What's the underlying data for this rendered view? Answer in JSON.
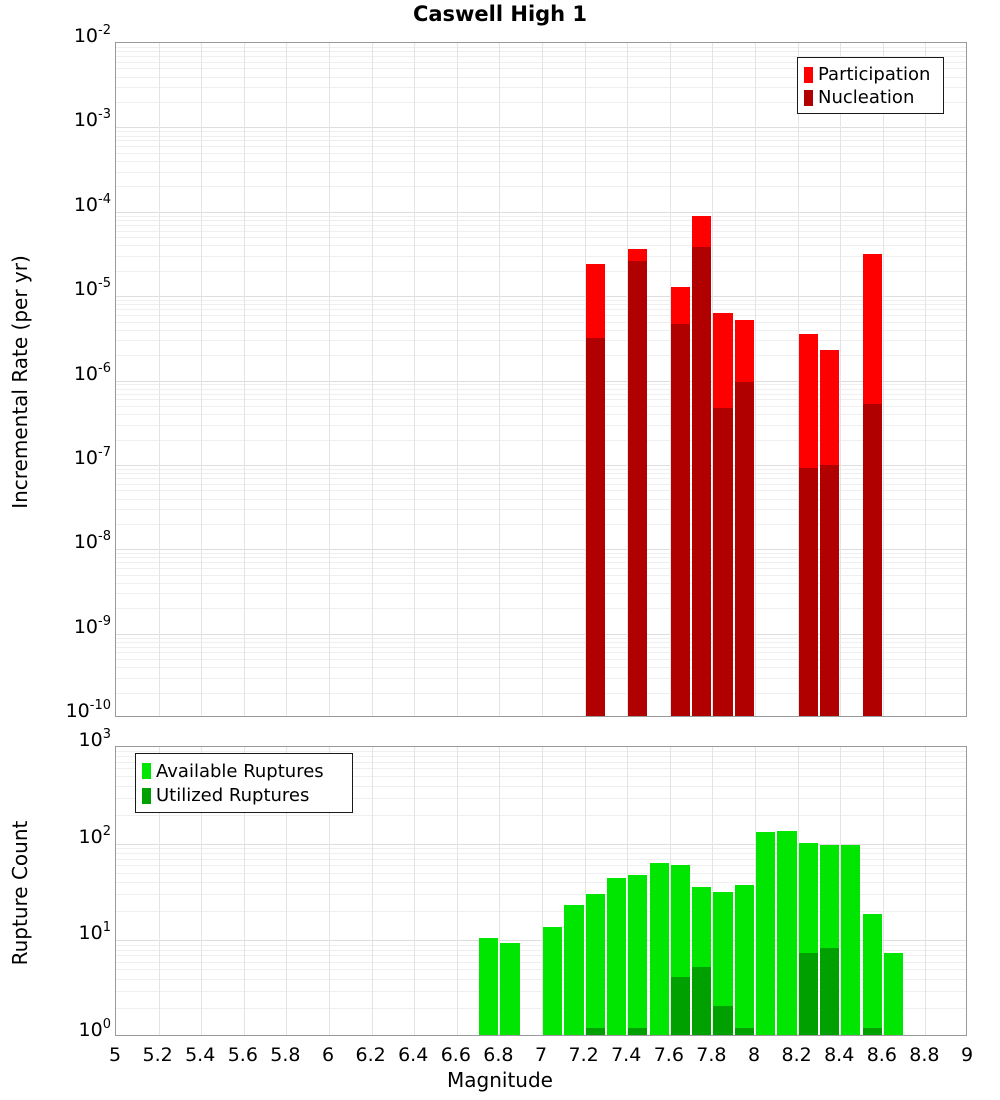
{
  "title": "Caswell High 1",
  "chart_data": [
    {
      "type": "bar",
      "panel": "incremental-rate",
      "title": "Caswell High 1",
      "ylabel": "Incremental Rate (per yr)",
      "xlabel": "",
      "yscale": "log",
      "ylim": [
        1e-10,
        0.01
      ],
      "xlim": [
        5,
        9
      ],
      "bin_width": 0.1,
      "grid": true,
      "legend_position": "top-right",
      "ytick_exponents": [
        -2,
        -3,
        -4,
        -5,
        -6,
        -7,
        -8,
        -9,
        -10
      ],
      "xticks": [
        "5",
        "5.2",
        "5.4",
        "5.6",
        "5.8",
        "6",
        "6.2",
        "6.4",
        "6.6",
        "6.8",
        "7",
        "7.2",
        "7.4",
        "7.6",
        "7.8",
        "8",
        "8.2",
        "8.4",
        "8.6",
        "8.8",
        "9"
      ],
      "show_xtick_labels": false,
      "series": [
        {
          "name": "Participation",
          "color": "#ff0000",
          "bins": [
            7.2,
            7.4,
            7.6,
            7.7,
            7.8,
            7.9,
            8.2,
            8.3,
            8.5
          ],
          "values": [
            2.3e-05,
            3.4e-05,
            1.2e-05,
            8.5e-05,
            6e-06,
            5e-06,
            3.4e-06,
            2.2e-06,
            3e-05
          ]
        },
        {
          "name": "Nucleation",
          "color": "#b00000",
          "bins": [
            7.2,
            7.4,
            7.6,
            7.7,
            7.8,
            7.9,
            8.2,
            8.3,
            8.5
          ],
          "values": [
            3e-06,
            2.5e-05,
            4.4e-06,
            3.6e-05,
            4.5e-07,
            9e-07,
            8.7e-08,
            9.5e-08,
            5e-07
          ]
        }
      ]
    },
    {
      "type": "bar",
      "panel": "rupture-count",
      "title": "",
      "ylabel": "Rupture Count",
      "xlabel": "Magnitude",
      "yscale": "log",
      "ylim": [
        1,
        1000
      ],
      "xlim": [
        5,
        9
      ],
      "bin_width": 0.1,
      "grid": true,
      "legend_position": "top-left",
      "ytick_exponents": [
        3,
        2,
        1,
        0
      ],
      "xticks": [
        "5",
        "5.2",
        "5.4",
        "5.6",
        "5.8",
        "6",
        "6.2",
        "6.4",
        "6.6",
        "6.8",
        "7",
        "7.2",
        "7.4",
        "7.6",
        "7.8",
        "8",
        "8.2",
        "8.4",
        "8.6",
        "8.8",
        "9"
      ],
      "show_xtick_labels": true,
      "series": [
        {
          "name": "Available Ruptures",
          "color": "#00e600",
          "bins": [
            6.7,
            6.8,
            7.0,
            7.1,
            7.2,
            7.3,
            7.4,
            7.5,
            7.6,
            7.7,
            7.8,
            7.9,
            8.0,
            8.1,
            8.2,
            8.3,
            8.4,
            8.5,
            8.6
          ],
          "values": [
            10,
            9,
            13,
            22,
            29,
            42,
            45,
            60,
            57,
            34,
            30,
            36,
            125,
            130,
            98,
            92,
            93,
            18,
            7
          ]
        },
        {
          "name": "Utilized Ruptures",
          "color": "#00a000",
          "bins": [
            7.2,
            7.4,
            7.6,
            7.7,
            7.8,
            7.9,
            8.2,
            8.3,
            8.5
          ],
          "values": [
            1,
            1,
            4,
            5,
            2,
            1,
            7,
            8,
            1
          ]
        }
      ]
    }
  ]
}
